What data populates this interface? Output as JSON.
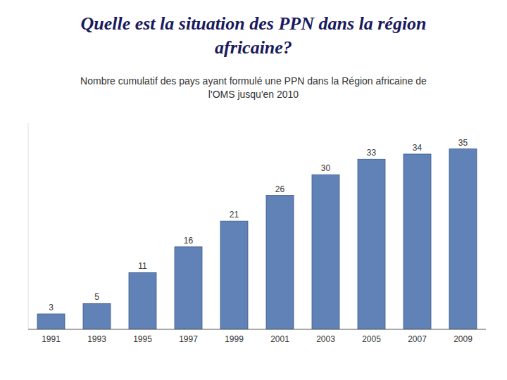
{
  "chart_data": {
    "type": "bar",
    "title": "Quelle est la situation des PPN dans la région\nafricaine?",
    "subtitle": "Nombre cumulatif des pays ayant formulé une PPN dans la Région africaine de\nl'OMS jusqu'en 2010",
    "categories": [
      "1991",
      "1993",
      "1995",
      "1997",
      "1999",
      "2001",
      "2003",
      "2005",
      "2007",
      "2009"
    ],
    "values": [
      3,
      5,
      11,
      16,
      21,
      26,
      30,
      33,
      34,
      35
    ],
    "color": "#6082B6",
    "ylim": [
      0,
      40
    ],
    "grid": false,
    "data_labels": true,
    "tick_labels": "x"
  }
}
